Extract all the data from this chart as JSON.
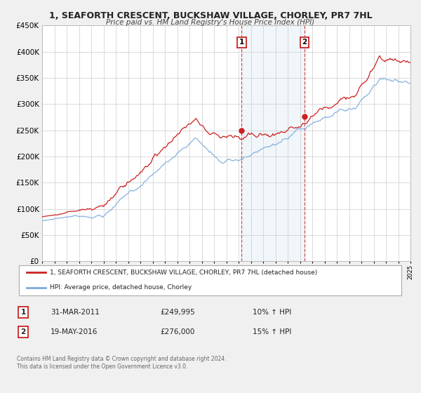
{
  "title": "1, SEAFORTH CRESCENT, BUCKSHAW VILLAGE, CHORLEY, PR7 7HL",
  "subtitle": "Price paid vs. HM Land Registry's House Price Index (HPI)",
  "hpi_color": "#7aaadd",
  "price_color": "#cc2222",
  "bg_color": "#f5f5f5",
  "plot_bg": "#ffffff",
  "ylim": [
    0,
    450000
  ],
  "yticks": [
    0,
    50000,
    100000,
    150000,
    200000,
    250000,
    300000,
    350000,
    400000,
    450000
  ],
  "year_start": 1995,
  "year_end": 2025,
  "sale1_year": 2011.25,
  "sale1_price": 249995,
  "sale2_year": 2016.38,
  "sale2_price": 276000,
  "legend_price_label": "1, SEAFORTH CRESCENT, BUCKSHAW VILLAGE, CHORLEY, PR7 7HL (detached house)",
  "legend_hpi_label": "HPI: Average price, detached house, Chorley",
  "table_row1": [
    "1",
    "31-MAR-2011",
    "£249,995",
    "10% ↑ HPI"
  ],
  "table_row2": [
    "2",
    "19-MAY-2016",
    "£276,000",
    "15% ↑ HPI"
  ],
  "footer1": "Contains HM Land Registry data © Crown copyright and database right 2024.",
  "footer2": "This data is licensed under the Open Government Licence v3.0."
}
